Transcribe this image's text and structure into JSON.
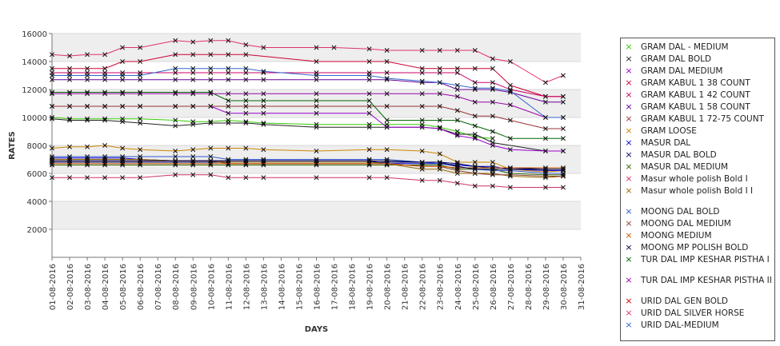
{
  "chart_data": {
    "type": "line",
    "xlabel": "DAYS",
    "ylabel": "RATES",
    "ylim": [
      0,
      16000
    ],
    "yticks": [
      2000,
      4000,
      6000,
      8000,
      10000,
      12000,
      14000,
      16000
    ],
    "categories": [
      "01-08-2016",
      "02-08-2016",
      "03-08-2016",
      "04-08-2016",
      "05-08-2016",
      "06-08-2016",
      "07-08-2016",
      "08-08-2016",
      "09-08-2016",
      "10-08-2016",
      "11-08-2016",
      "12-08-2016",
      "13-08-2016",
      "14-08-2016",
      "15-08-2016",
      "16-08-2016",
      "17-08-2016",
      "18-08-2016",
      "19-08-2016",
      "20-08-2016",
      "21-08-2016",
      "22-08-2016",
      "23-08-2016",
      "24-08-2016",
      "25-08-2016",
      "26-08-2016",
      "27-08-2016",
      "28-08-2016",
      "29-08-2016",
      "30-08-2016",
      "31-08-2016"
    ],
    "legend_position": "right",
    "grid": true,
    "series": [
      {
        "name": "GRAM DAL - MEDIUM",
        "color": "#33cc00",
        "values": [
          10000,
          9900,
          9900,
          9900,
          9900,
          9900,
          null,
          9800,
          9700,
          9700,
          9800,
          9700,
          9600,
          null,
          null,
          9500,
          null,
          null,
          9500,
          9500,
          null,
          9500,
          9300,
          9000,
          8600,
          8500,
          null,
          null,
          null,
          null,
          null
        ]
      },
      {
        "name": "GRAM DAL BOLD",
        "color": "#222222",
        "values": [
          9900,
          9800,
          9800,
          9800,
          9700,
          9600,
          null,
          9400,
          9500,
          9600,
          9600,
          9600,
          9500,
          null,
          null,
          9300,
          null,
          null,
          9300,
          9300,
          null,
          9300,
          9200,
          8800,
          8800,
          8200,
          null,
          null,
          7600,
          7600,
          null
        ]
      },
      {
        "name": "GRAM DAL MEDIUM",
        "color": "#9900cc",
        "values": [
          10800,
          10800,
          10800,
          10800,
          10800,
          10800,
          null,
          10800,
          10800,
          10800,
          10300,
          10300,
          10300,
          null,
          null,
          10300,
          null,
          null,
          10300,
          9300,
          null,
          9300,
          9200,
          8700,
          8500,
          8000,
          7700,
          null,
          7600,
          7600,
          null
        ]
      },
      {
        "name": "GRAM KABUL 1 38 COUNT",
        "color": "#cc0033",
        "values": [
          13500,
          13500,
          13500,
          13500,
          14000,
          14000,
          null,
          14500,
          14500,
          14500,
          14500,
          14500,
          null,
          null,
          null,
          14000,
          null,
          null,
          14000,
          14000,
          null,
          13500,
          13500,
          13500,
          13500,
          13500,
          12300,
          null,
          11500,
          11500,
          null
        ]
      },
      {
        "name": "GRAM KABUL 1 42 COUNT",
        "color": "#cc0066",
        "values": [
          13200,
          13200,
          13200,
          13200,
          13200,
          13200,
          null,
          13200,
          13200,
          13200,
          13200,
          13200,
          13200,
          null,
          null,
          13200,
          null,
          null,
          13200,
          13200,
          null,
          13200,
          13200,
          13200,
          12500,
          12500,
          12000,
          null,
          11500,
          11500,
          null
        ]
      },
      {
        "name": "GRAM KABUL 1 58 COUNT",
        "color": "#660099",
        "values": [
          12700,
          12700,
          12700,
          12700,
          12700,
          12700,
          null,
          12700,
          12700,
          12700,
          12700,
          12700,
          12700,
          null,
          null,
          12700,
          null,
          null,
          12700,
          12700,
          null,
          12500,
          12500,
          12000,
          12000,
          12000,
          11800,
          null,
          11100,
          11100,
          null
        ]
      },
      {
        "name": "GRAM KABUL 1 72-75 COUNT",
        "color": "#993333",
        "values": [
          10800,
          10800,
          10800,
          10800,
          10800,
          10800,
          null,
          10800,
          10800,
          10800,
          10800,
          10800,
          10800,
          null,
          null,
          10800,
          null,
          null,
          10800,
          10800,
          null,
          10800,
          10800,
          10500,
          10100,
          10100,
          9800,
          null,
          9200,
          9200,
          null
        ]
      },
      {
        "name": "GRAM LOOSE",
        "color": "#cc8800",
        "values": [
          7800,
          7900,
          7900,
          8000,
          7800,
          7700,
          null,
          7600,
          7700,
          7800,
          7800,
          7800,
          7700,
          null,
          null,
          7600,
          null,
          null,
          7700,
          7700,
          null,
          7600,
          7400,
          6800,
          6800,
          6800,
          6300,
          null,
          6100,
          6200,
          null
        ]
      },
      {
        "name": "MASUR DAL",
        "color": "#0000cc",
        "values": [
          7100,
          7100,
          7100,
          7100,
          7100,
          7000,
          null,
          6900,
          6900,
          6900,
          6900,
          6900,
          6900,
          null,
          null,
          6900,
          null,
          null,
          6900,
          6700,
          null,
          6700,
          6700,
          6600,
          6500,
          6500,
          6300,
          null,
          6200,
          6200,
          null
        ]
      },
      {
        "name": "MASUR DAL BOLD",
        "color": "#000066",
        "values": [
          6800,
          6800,
          6800,
          6800,
          6800,
          6800,
          null,
          6800,
          6800,
          6800,
          6800,
          6800,
          6800,
          null,
          null,
          6800,
          null,
          null,
          6800,
          6800,
          null,
          6800,
          6800,
          6700,
          6500,
          6400,
          6400,
          null,
          6300,
          6300,
          null
        ]
      },
      {
        "name": "MASUR DAL MEDIUM",
        "color": "#336600",
        "values": [
          6600,
          6600,
          6600,
          6600,
          6600,
          6600,
          null,
          6600,
          6600,
          6600,
          6600,
          6600,
          6600,
          null,
          null,
          6600,
          null,
          null,
          6600,
          6600,
          null,
          6600,
          6600,
          6300,
          6300,
          6300,
          6000,
          null,
          5900,
          5900,
          null
        ]
      },
      {
        "name": "Masur whole polish Bold I",
        "color": "#cc3366",
        "values": [
          5700,
          5700,
          5700,
          5700,
          5700,
          5700,
          null,
          5900,
          5900,
          5900,
          5700,
          5700,
          5700,
          null,
          null,
          5700,
          null,
          null,
          5700,
          5700,
          null,
          5500,
          5500,
          5300,
          5100,
          5100,
          5000,
          null,
          5000,
          5000,
          null
        ]
      },
      {
        "name": "Masur whole polish Bold I I",
        "color": "#996600",
        "values": [
          7000,
          7000,
          7000,
          7000,
          7000,
          7000,
          null,
          6900,
          6900,
          6900,
          6800,
          6800,
          6800,
          null,
          null,
          6800,
          null,
          null,
          6800,
          6700,
          null,
          6300,
          6300,
          6000,
          6000,
          6000,
          5800,
          null,
          5700,
          5800,
          null
        ]
      },
      {
        "name": "MOONG DAL BOLD",
        "color": "#3355cc",
        "values": [
          7200,
          7200,
          7200,
          7200,
          7200,
          7200,
          null,
          7200,
          7200,
          7200,
          7000,
          7000,
          7000,
          null,
          null,
          7000,
          null,
          null,
          7000,
          7000,
          null,
          6800,
          6700,
          6500,
          6300,
          6200,
          6200,
          null,
          6000,
          6000,
          null
        ]
      },
      {
        "name": "MOONG DAL MEDIUM",
        "color": "#884433",
        "values": [
          6900,
          6900,
          6900,
          6900,
          6900,
          6900,
          null,
          6900,
          6900,
          6900,
          6700,
          6700,
          6700,
          null,
          null,
          6700,
          null,
          null,
          6700,
          6700,
          null,
          6500,
          6500,
          6200,
          6000,
          5900,
          5900,
          null,
          5800,
          5800,
          null
        ]
      },
      {
        "name": "MOONG MEDIUM",
        "color": "#cc5500",
        "values": [
          6700,
          6700,
          6700,
          6700,
          6700,
          6700,
          null,
          6700,
          6700,
          6700,
          6700,
          6700,
          6700,
          null,
          null,
          6700,
          null,
          null,
          6700,
          6700,
          null,
          6500,
          6500,
          6400,
          6400,
          6400,
          6400,
          null,
          6400,
          6400,
          null
        ]
      },
      {
        "name": "MOONG MP POLISH BOLD",
        "color": "#000044",
        "values": [
          6900,
          6900,
          6900,
          6900,
          6900,
          6900,
          null,
          6900,
          6900,
          6900,
          6900,
          6900,
          6900,
          null,
          null,
          6900,
          null,
          null,
          6900,
          6900,
          null,
          6800,
          6800,
          6500,
          6300,
          6300,
          6300,
          null,
          6300,
          6300,
          null
        ]
      },
      {
        "name": "TUR DAL IMP KESHAR PISTHA I",
        "color": "#006600",
        "values": [
          11800,
          11800,
          11800,
          11800,
          11800,
          11800,
          null,
          11800,
          11800,
          11800,
          11200,
          11200,
          11200,
          null,
          null,
          11200,
          null,
          null,
          11200,
          9800,
          null,
          9800,
          9800,
          9800,
          9400,
          9000,
          8500,
          null,
          8500,
          8500,
          null
        ]
      },
      {
        "name": "TUR DAL IMP KESHAR PISTHA II",
        "color": "#9900aa",
        "values": [
          11700,
          11700,
          11700,
          11700,
          11700,
          11700,
          null,
          11700,
          11700,
          11700,
          11700,
          11700,
          11700,
          null,
          null,
          11700,
          null,
          null,
          11700,
          11700,
          null,
          11700,
          11700,
          11500,
          11100,
          11100,
          10900,
          null,
          10000,
          10000,
          null
        ]
      },
      {
        "name": "URID DAL GEN BOLD",
        "color": "#cc0000",
        "values": [
          null,
          null,
          null,
          null,
          null,
          null,
          null,
          null,
          null,
          null,
          null,
          null,
          null,
          null,
          null,
          null,
          null,
          null,
          null,
          null,
          null,
          null,
          null,
          null,
          null,
          null,
          null,
          null,
          null,
          null,
          null
        ]
      },
      {
        "name": "URID DAL SILVER HORSE",
        "color": "#dd3366",
        "values": [
          14500,
          14400,
          14500,
          14500,
          15000,
          15000,
          null,
          15500,
          15400,
          15500,
          15500,
          15200,
          15000,
          null,
          null,
          15000,
          15000,
          null,
          14900,
          14800,
          null,
          14800,
          14800,
          14800,
          14800,
          14200,
          14000,
          null,
          12500,
          13000,
          null
        ]
      },
      {
        "name": "URID DAL-MEDIUM",
        "color": "#3366cc",
        "values": [
          13000,
          13000,
          13000,
          13000,
          13000,
          13000,
          null,
          13500,
          13500,
          13500,
          13500,
          13500,
          13300,
          null,
          null,
          13000,
          null,
          null,
          13000,
          12800,
          null,
          12600,
          12500,
          12300,
          12100,
          12100,
          11900,
          null,
          10000,
          10000,
          null
        ]
      }
    ]
  }
}
